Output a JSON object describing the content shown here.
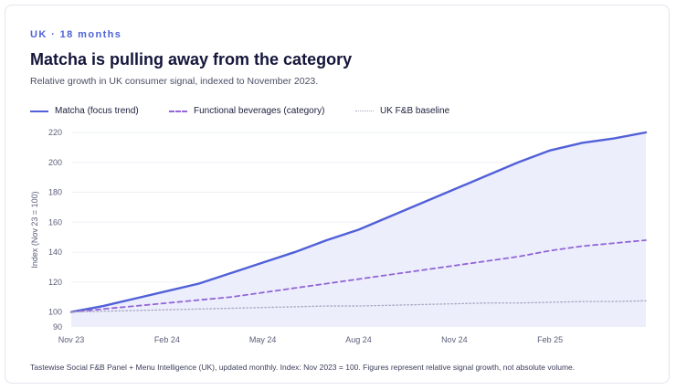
{
  "header": {
    "eyebrow": "UK · 18 months",
    "title": "Matcha is pulling away from the category",
    "subtitle": "Relative growth in UK consumer signal, indexed to November 2023."
  },
  "legend": [
    {
      "label": "Matcha (focus trend)",
      "style": "solid",
      "color": "#5160d8"
    },
    {
      "label": "Functional beverages (category)",
      "style": "dashed",
      "color": "#9266d6"
    },
    {
      "label": "UK F&B baseline",
      "style": "dotted",
      "color": "#a8a7bf"
    }
  ],
  "footnote": "Tastewise Social F&B Panel + Menu Intelligence (UK), updated monthly. Index: Nov 2023 = 100. Figures represent relative signal growth, not absolute volume.",
  "colors": {
    "accent": "#4f63d8",
    "matcha": "#5160d8",
    "functional": "#9266d6",
    "baseline": "#a8a7bf",
    "area_fill": "#eceefc",
    "grid": "#eef0f5"
  },
  "chart_data": {
    "type": "line",
    "ylabel": "Index (Nov 23 = 100)",
    "ylim": [
      90,
      220
    ],
    "yticks": [
      90,
      100,
      120,
      140,
      160,
      180,
      200,
      220
    ],
    "x": [
      "2023-11",
      "2023-12",
      "2024-01",
      "2024-02",
      "2024-03",
      "2024-04",
      "2024-05",
      "2024-06",
      "2024-07",
      "2024-08",
      "2024-09",
      "2024-10",
      "2024-11",
      "2024-12",
      "2025-01",
      "2025-02",
      "2025-03",
      "2025-04",
      "2025-05"
    ],
    "xtick_labels": [
      {
        "x": "2023-11",
        "label": "Nov 23"
      },
      {
        "x": "2024-02",
        "label": "Feb 24"
      },
      {
        "x": "2024-05",
        "label": "May 24"
      },
      {
        "x": "2024-08",
        "label": "Aug 24"
      },
      {
        "x": "2024-11",
        "label": "Nov 24"
      },
      {
        "x": "2025-02",
        "label": "Feb 25"
      }
    ],
    "grid": true,
    "legend_position": "top-left",
    "series": [
      {
        "name": "Matcha (focus trend)",
        "style": "solid",
        "fill_area": true,
        "values": [
          100,
          104,
          109,
          114,
          119,
          126,
          133,
          140,
          148,
          155,
          164,
          173,
          182,
          191,
          200,
          208,
          213,
          216,
          220
        ]
      },
      {
        "name": "Functional beverages (category)",
        "style": "dashed",
        "values": [
          100,
          102,
          104,
          106,
          108,
          110,
          113,
          116,
          119,
          122,
          125,
          128,
          131,
          134,
          137,
          141,
          144,
          146,
          148
        ]
      },
      {
        "name": "UK F&B baseline",
        "style": "dotted",
        "values": [
          100,
          100.5,
          101,
          101.5,
          102,
          102.5,
          103,
          103.5,
          104,
          104,
          104.5,
          105,
          105.5,
          106,
          106,
          106.5,
          107,
          107,
          107.5
        ]
      }
    ]
  }
}
